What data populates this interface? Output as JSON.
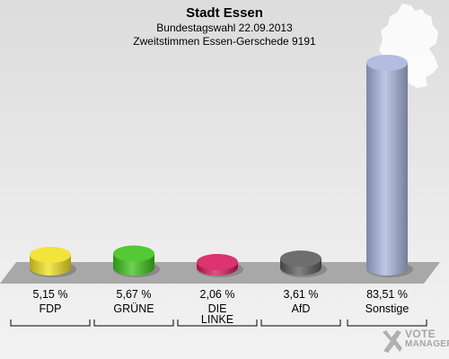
{
  "header": {
    "title": "Stadt Essen",
    "subtitle_1": "Bundestagswahl 22.09.2013",
    "subtitle_2": "Zweitstimmen Essen-Gerschede 9191"
  },
  "watermark": {
    "line1": "VOTE",
    "line2": "MANAGER"
  },
  "chart_data": {
    "type": "bar",
    "title": "Stadt Essen",
    "subtitle": "Bundestagswahl 22.09.2013 — Zweitstimmen Essen-Gerschede 9191",
    "categories": [
      "FDP",
      "GRÜNE",
      "DIE LINKE",
      "AfD",
      "Sonstige"
    ],
    "value_labels": [
      "5,15 %",
      "5,67 %",
      "2,06 %",
      "3,61 %",
      "83,51 %"
    ],
    "values": [
      5.15,
      5.67,
      2.06,
      3.61,
      83.51
    ],
    "colors": [
      "#f0e020",
      "#3cc21a",
      "#d6185a",
      "#5a5a5a",
      "#a8b4dc"
    ],
    "unit": "%",
    "ylim": [
      0,
      83.51
    ],
    "grid": false,
    "legend": "none"
  }
}
